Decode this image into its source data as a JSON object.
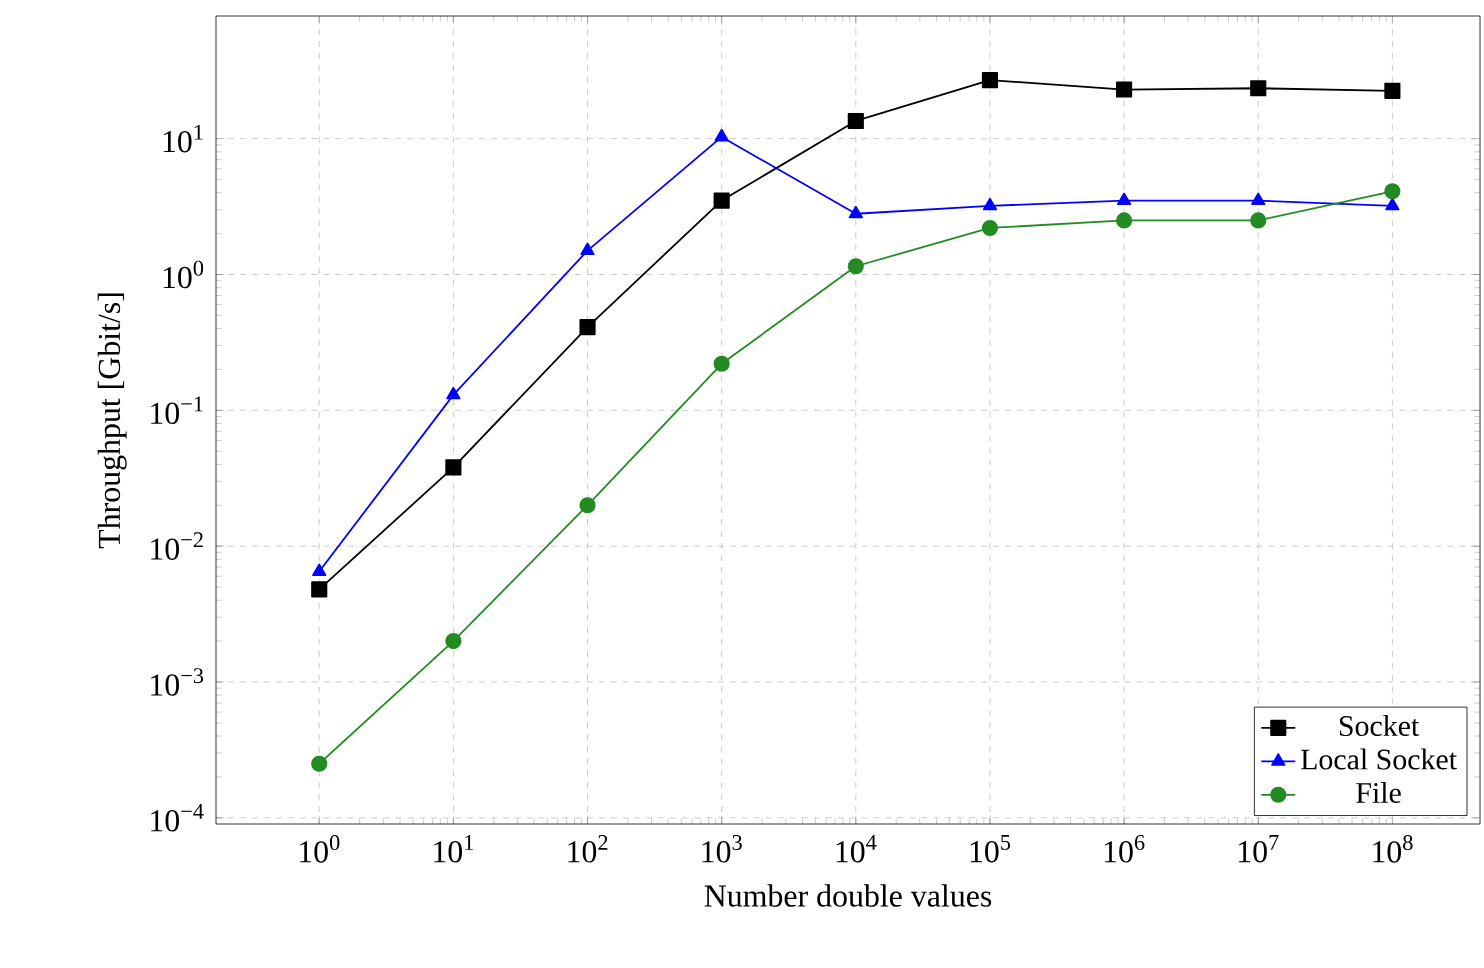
{
  "chart_data": {
    "type": "line",
    "xlabel": "Number double values",
    "ylabel": "Throughput [Gbit/s]",
    "log": "xy",
    "grid": true,
    "legend": "bottom right",
    "line_style": "solid",
    "x": [
      1,
      10,
      100,
      1000,
      10000,
      100000,
      1000000,
      10000000,
      100000000
    ],
    "xlim": [
      0.17,
      450000000
    ],
    "ylim": [
      9e-05,
      80
    ],
    "xticks": [
      {
        "value": 1,
        "label": "10$^{0}$"
      },
      {
        "value": 10,
        "label": "10$^{1}$"
      },
      {
        "value": 100,
        "label": "10$^{2}$"
      },
      {
        "value": 1000,
        "label": "10$^{3}$"
      },
      {
        "value": 10000,
        "label": "10$^{4}$"
      },
      {
        "value": 100000,
        "label": "10$^{5}$"
      },
      {
        "value": 1000000,
        "label": "10$^{6}$"
      },
      {
        "value": 10000000,
        "label": "10$^{7}$"
      },
      {
        "value": 100000000,
        "label": "10$^{8}$"
      }
    ],
    "yticks": [
      {
        "value": 0.0001,
        "label": "10$^{−4}$"
      },
      {
        "value": 0.001,
        "label": "10$^{−3}$"
      },
      {
        "value": 0.01,
        "label": "10$^{−2}$"
      },
      {
        "value": 0.1,
        "label": "10$^{−1}$"
      },
      {
        "value": 1,
        "label": "10$^{0}$"
      },
      {
        "value": 10,
        "label": "10$^{1}$"
      }
    ],
    "series": [
      {
        "name": "Socket",
        "color": "#000000",
        "marker": "square",
        "values": [
          0.0048,
          0.038,
          0.41,
          3.5,
          13.5,
          27,
          23,
          23.5,
          22.5
        ]
      },
      {
        "name": "Local Socket",
        "color": "#0000ff",
        "marker": "triangle",
        "values": [
          0.0065,
          0.13,
          1.5,
          10.3,
          2.8,
          3.2,
          3.5,
          3.5,
          3.2
        ]
      },
      {
        "name": "File",
        "color": "#228b22",
        "marker": "circle",
        "values": [
          0.00025,
          0.002,
          0.02,
          0.22,
          1.15,
          2.2,
          2.5,
          2.5,
          4.1
        ]
      }
    ]
  }
}
